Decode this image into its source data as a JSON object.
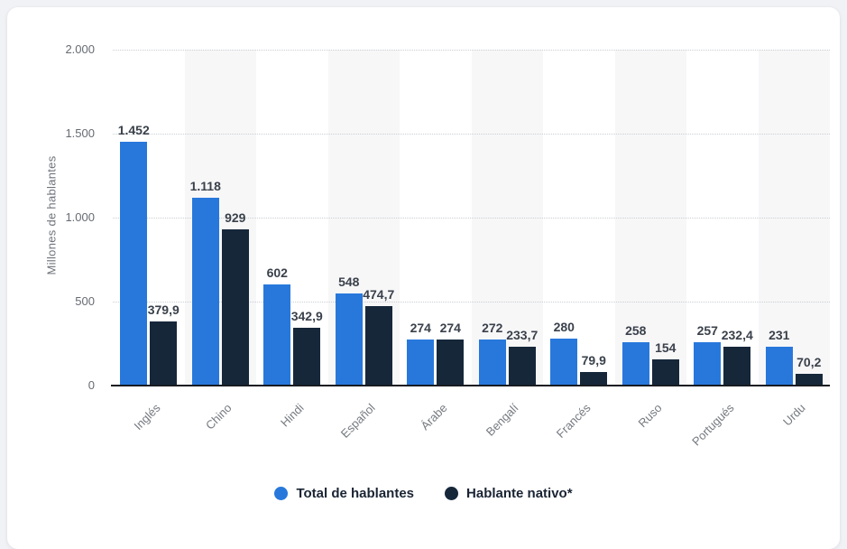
{
  "theme": {
    "page_background": "#f1f2f5",
    "card_background": "#ffffff",
    "band_color": "#f7f7f8",
    "grid_color": "#cbced3",
    "baseline_color": "#181c22",
    "value_label_color": "#3a414b",
    "axis_label_color": "#666b72",
    "legend_text_color": "#1a2433"
  },
  "chart_data": {
    "type": "bar",
    "title": "",
    "ylabel": "Millones de hablantes",
    "xlabel": "",
    "ylim": [
      0,
      2000
    ],
    "grid": "horizontal-dotted",
    "legend_position": "bottom",
    "alternating_column_bands": true,
    "categories": [
      "Inglés",
      "Chino",
      "Hindi",
      "Español",
      "Árabe",
      "Bengalí",
      "Francés",
      "Ruso",
      "Portugués",
      "Urdu"
    ],
    "y_ticks": [
      {
        "value": 0,
        "label": "0"
      },
      {
        "value": 500,
        "label": "500"
      },
      {
        "value": 1000,
        "label": "1.000"
      },
      {
        "value": 1500,
        "label": "1.500"
      },
      {
        "value": 2000,
        "label": "2.000"
      }
    ],
    "series": [
      {
        "name": "Total de hablantes",
        "color": "#2878dc",
        "values": [
          1452,
          1118,
          602,
          548,
          274,
          272,
          280,
          258,
          257,
          231
        ],
        "labels": [
          "1.452",
          "1.118",
          "602",
          "548",
          "274",
          "272",
          "280",
          "258",
          "257",
          "231"
        ]
      },
      {
        "name": "Hablante nativo*",
        "color": "#16273a",
        "values": [
          379.9,
          929,
          342.9,
          474.7,
          274,
          233.7,
          79.9,
          154,
          232.4,
          70.2
        ],
        "labels": [
          "379,9",
          "929",
          "342,9",
          "474,7",
          "274",
          "233,7",
          "79,9",
          "154",
          "232,4",
          "70,2"
        ]
      }
    ]
  }
}
